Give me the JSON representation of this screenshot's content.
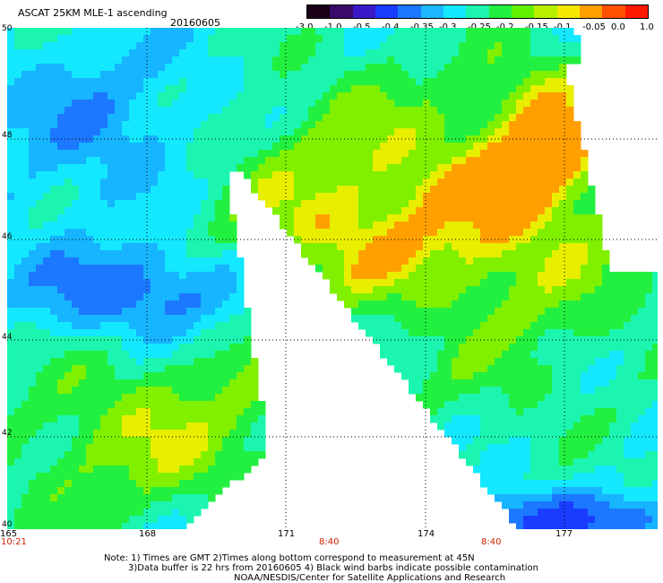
{
  "header": {
    "product": "ASCAT 25KM MLE-1 ascending",
    "date": "20160605"
  },
  "colorbar": {
    "labels": [
      "-3.0",
      "-1.0",
      "-0.5",
      "-0.4",
      "-0.35",
      "-0.3",
      "-0.25",
      "-0.2",
      "-0.15",
      "-0.1",
      "-0.05",
      "0.0",
      "1.0"
    ],
    "colors": [
      "#1a0018",
      "#3a0a6a",
      "#3a1ac8",
      "#1a3cff",
      "#1c78ff",
      "#1cb8ff",
      "#13e8ff",
      "#1cf5b0",
      "#22f040",
      "#60f000",
      "#b8f000",
      "#f4e800",
      "#ffa000",
      "#ff5000",
      "#ff1800"
    ]
  },
  "axes": {
    "lat_labels": [
      "50",
      "48",
      "46",
      "44",
      "42",
      "40"
    ],
    "lon_labels": [
      "165",
      "168",
      "171",
      "174",
      "177"
    ]
  },
  "times": {
    "left": "10:21",
    "middle": "8:40",
    "right": "8:40"
  },
  "notes": {
    "line1": "Note: 1) Times are GMT 2)Times along bottom correspond to measurement at 45N",
    "line2": "3)Data buffer is 22 hrs from 20160605 4) Black wind barbs indicate possible contamination",
    "line3": "NOAA/NESDIS/Center for Satellite Applications and Research"
  }
}
